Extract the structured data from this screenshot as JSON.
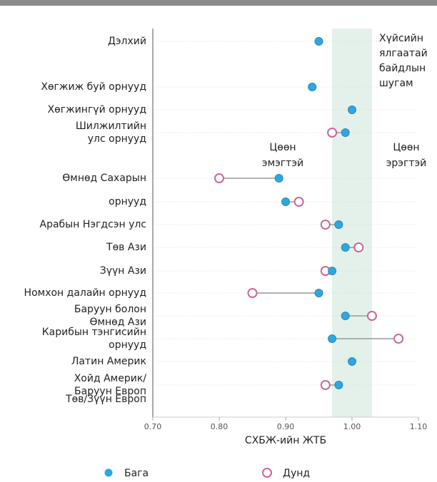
{
  "chart_data": {
    "type": "dumbbell",
    "xlabel": "СХБЖ-ийн ЖТБ",
    "categories": [
      "Дэлхий",
      "Хөгжиж буй орнууд",
      "Хөгжингүй орнууд",
      "Шилжилтийн\nулс орнууд",
      "Өмнөд Сахарын",
      "орнууд",
      "Арабын Нэгдсэн улс",
      "Төв Ази",
      "Зүүн Ази",
      "Номхон далайн орнууд",
      "Баруун болон\nӨмнөд Ази",
      "Карибын тэнгисийн\nорнууд",
      "Латин Америк",
      "Хойд Америк/\nБаруун Европ",
      "Төв/Зүүн Европ"
    ],
    "series": [
      {
        "name": "Бага",
        "color": "#2aa9e0",
        "values": [
          0.95,
          0.94,
          1.0,
          0.99,
          0.89,
          0.9,
          0.98,
          0.99,
          0.97,
          0.95,
          0.99,
          0.97,
          1.0,
          0.98,
          null
        ]
      },
      {
        "name": "Дунд",
        "color": "#c9679a",
        "values": [
          null,
          null,
          null,
          0.97,
          0.8,
          0.92,
          0.96,
          1.01,
          0.96,
          0.85,
          1.03,
          1.07,
          null,
          0.96,
          null
        ]
      }
    ],
    "xlim": [
      0.7,
      1.1
    ],
    "xticks": [
      {
        "value": 0.7,
        "label": "0.70"
      },
      {
        "value": 0.8,
        "label": "0.80"
      },
      {
        "value": 0.9,
        "label": "0.90"
      },
      {
        "value": 1.0,
        "label": "1.00"
      },
      {
        "value": 1.1,
        "label": "1.10"
      }
    ],
    "band": [
      0.97,
      1.03
    ],
    "band_label": "Хүйсийн\nялгаатай\nбайдлын\nшугам",
    "annotations": [
      "Цөөн\nэмэгтэй",
      "Цөөн\nэрэгтэй"
    ]
  }
}
